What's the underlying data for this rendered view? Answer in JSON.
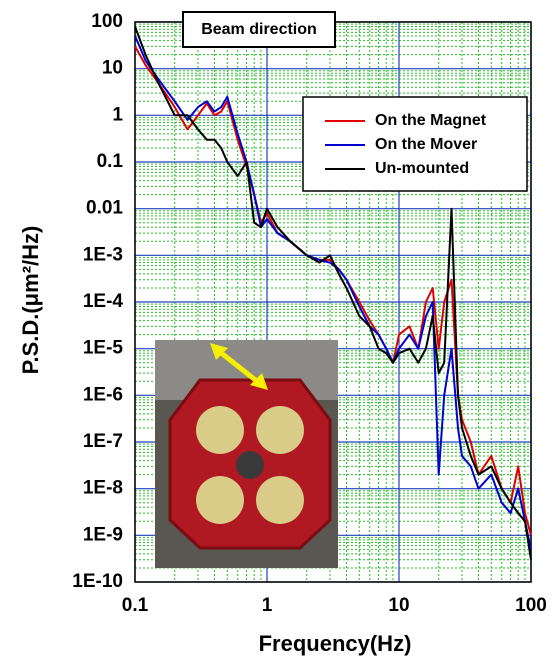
{
  "chart_data": {
    "type": "line",
    "annotation": "Beam direction",
    "x_label": "Frequency(Hz)",
    "y_label": "P.S.D.(μm²/Hz)",
    "log_x": true,
    "log_y": true,
    "grid": true,
    "minor_grid": true,
    "legend": "upper right",
    "xlim": [
      0.1,
      100
    ],
    "xticks": [
      0.1,
      1,
      10,
      100
    ],
    "ylim": [
      1e-10,
      100
    ],
    "yticks": [
      {
        "value": 1e-10,
        "label": "1E-10"
      },
      {
        "value": 1e-09,
        "label": "1E-9"
      },
      {
        "value": 1e-08,
        "label": "1E-8"
      },
      {
        "value": 1e-07,
        "label": "1E-7"
      },
      {
        "value": 1e-06,
        "label": "1E-6"
      },
      {
        "value": 1e-05,
        "label": "1E-5"
      },
      {
        "value": 0.0001,
        "label": "1E-4"
      },
      {
        "value": 0.001,
        "label": "1E-3"
      },
      0.01,
      0.1,
      1,
      10,
      100
    ],
    "x": [
      0.1,
      0.12,
      0.15,
      0.2,
      0.25,
      0.3,
      0.35,
      0.4,
      0.45,
      0.5,
      0.6,
      0.7,
      0.8,
      0.9,
      1,
      1.2,
      1.5,
      2,
      2.5,
      3,
      3.5,
      4,
      5,
      6,
      7,
      8,
      9,
      10,
      12,
      14,
      16,
      18,
      20,
      22,
      25,
      28,
      30,
      35,
      40,
      50,
      60,
      70,
      80,
      90,
      100
    ],
    "series": [
      {
        "name": "On the Magnet",
        "color": "#e00000",
        "values": [
          30,
          12,
          5,
          1.5,
          0.5,
          1,
          1.8,
          1,
          1.2,
          2,
          0.3,
          0.08,
          0.02,
          0.005,
          0.008,
          0.003,
          0.002,
          0.001,
          0.0008,
          0.0008,
          0.0005,
          0.0003,
          0.0001,
          4e-05,
          2e-05,
          1e-05,
          5e-06,
          2e-05,
          3e-05,
          1e-05,
          0.0001,
          0.0002,
          1e-05,
          0.0001,
          0.0003,
          1e-06,
          3e-07,
          1e-07,
          2e-08,
          5e-08,
          1e-08,
          5e-09,
          3e-08,
          3e-09,
          1e-09
        ]
      },
      {
        "name": "On the Mover",
        "color": "#0000d0",
        "values": [
          50,
          15,
          6,
          2,
          0.8,
          1.5,
          2,
          1.2,
          1.5,
          2.5,
          0.4,
          0.1,
          0.02,
          0.004,
          0.006,
          0.003,
          0.002,
          0.001,
          0.0008,
          0.0007,
          0.0005,
          0.0003,
          8e-05,
          3e-05,
          2e-05,
          1e-05,
          5e-06,
          1e-05,
          2e-05,
          1e-05,
          5e-05,
          0.0001,
          2e-08,
          1e-06,
          1e-05,
          2e-07,
          5e-08,
          3e-08,
          1e-08,
          2e-08,
          5e-09,
          3e-09,
          1e-08,
          2e-09,
          5e-10
        ]
      },
      {
        "name": "Un-mounted",
        "color": "#000000",
        "values": [
          80,
          20,
          5,
          1,
          1,
          0.5,
          0.3,
          0.3,
          0.2,
          0.1,
          0.05,
          0.1,
          0.005,
          0.004,
          0.01,
          0.004,
          0.002,
          0.001,
          0.0007,
          0.001,
          0.0004,
          0.0002,
          5e-05,
          3e-05,
          1e-05,
          8e-06,
          5e-06,
          8e-06,
          1e-05,
          5e-06,
          1e-05,
          5e-05,
          3e-06,
          5e-06,
          0.01,
          1e-06,
          2e-07,
          5e-08,
          2e-08,
          3e-08,
          1e-08,
          5e-09,
          3e-09,
          2e-09,
          3e-10
        ]
      }
    ]
  }
}
